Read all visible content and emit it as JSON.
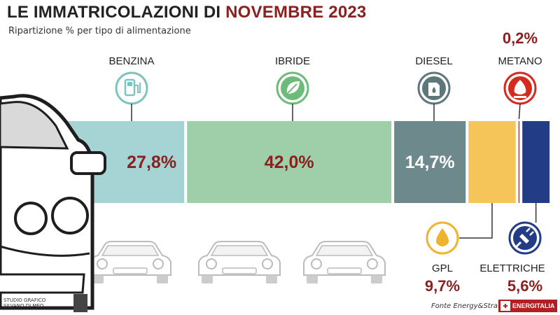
{
  "header": {
    "title_main": "LE IMMATRICOLAZIONI DI ",
    "title_accent": "NOVEMBRE 2023",
    "subtitle": "Ripartizione % per tipo di alimentazione"
  },
  "footer": {
    "credit_line1": "STUDIO GRAFICO",
    "credit_line2": "SILVANO DI MEO",
    "source": "Fonte Energy&Strategy",
    "brand": "ENERGITALIA"
  },
  "colors": {
    "accent": "#8b2020",
    "benzina": "#a6d4d4",
    "ibride": "#9fcfa8",
    "diesel": "#6e898c",
    "gpl": "#f6c55a",
    "metano": "#d42a1f",
    "elettriche": "#233c86"
  },
  "chart_data": {
    "type": "bar",
    "stacked": true,
    "orientation": "horizontal",
    "categories": [
      "BENZINA",
      "IBRIDE",
      "DIESEL",
      "GPL",
      "METANO",
      "ELETTRICHE"
    ],
    "values": [
      27.8,
      42.0,
      14.7,
      9.7,
      0.2,
      5.6
    ],
    "labels": [
      "27,8%",
      "42,0%",
      "14,7%",
      "9,7%",
      "0,2%",
      "5,6%"
    ],
    "icons": [
      "fuel-pump-icon",
      "leaf-icon",
      "fuel-can-icon",
      "drop-icon",
      "flame-icon",
      "plug-icon"
    ],
    "title": "LE IMMATRICOLAZIONI DI NOVEMBRE 2023",
    "subtitle": "Ripartizione % per tipo di alimentazione"
  }
}
